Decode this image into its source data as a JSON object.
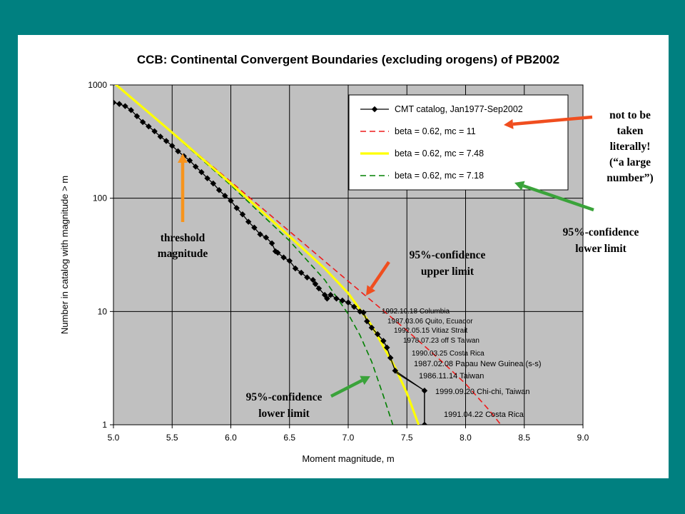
{
  "chart_data": {
    "type": "line",
    "title": "CCB: Continental Convergent Boundaries (excluding orogens) of PB2002",
    "xlabel": "Moment magnitude, m",
    "ylabel": "Number in catalog with magnitude > m",
    "xlim": [
      5.0,
      9.0
    ],
    "ylim": [
      1,
      1000
    ],
    "yscale": "log",
    "grid": true,
    "legend_position": "top-right",
    "x_ticks": [
      "5.0",
      "5.5",
      "6.0",
      "6.5",
      "7.0",
      "7.5",
      "8.0",
      "8.5",
      "9.0"
    ],
    "y_ticks": [
      "1",
      "10",
      "100",
      "1000"
    ],
    "series": [
      {
        "name": "CMT catalog, Jan1977-Sep2002",
        "style": "line-with-markers",
        "color": "#000000",
        "x": [
          5.0,
          5.05,
          5.1,
          5.15,
          5.2,
          5.25,
          5.3,
          5.35,
          5.4,
          5.45,
          5.5,
          5.55,
          5.6,
          5.65,
          5.7,
          5.75,
          5.8,
          5.85,
          5.9,
          5.95,
          6.0,
          6.05,
          6.1,
          6.15,
          6.2,
          6.25,
          6.3,
          6.35,
          6.38,
          6.4,
          6.45,
          6.5,
          6.55,
          6.6,
          6.65,
          6.7,
          6.72,
          6.75,
          6.8,
          6.82,
          6.85,
          6.9,
          6.95,
          7.0,
          7.05,
          7.1,
          7.13,
          7.16,
          7.2,
          7.25,
          7.3,
          7.33,
          7.36,
          7.4,
          7.65,
          7.65
        ],
        "y": [
          700,
          680,
          650,
          600,
          530,
          470,
          430,
          390,
          350,
          320,
          290,
          260,
          235,
          215,
          190,
          170,
          150,
          135,
          118,
          105,
          95,
          82,
          72,
          62,
          55,
          48,
          45,
          40,
          34,
          33,
          30,
          28,
          24,
          22,
          20,
          19,
          17.5,
          16,
          14,
          13,
          14,
          13,
          12.5,
          12,
          11,
          10,
          9.8,
          8.2,
          7.2,
          6.3,
          5.5,
          4.8,
          3.9,
          3.0,
          2,
          1
        ]
      },
      {
        "name": "beta = 0.62, mc = 11",
        "style": "dashed",
        "color": "#ee1c1c",
        "x": [
          5.0,
          5.5,
          6.0,
          6.5,
          7.0,
          7.5,
          7.8,
          8.0,
          8.2,
          8.3
        ],
        "y": [
          1050,
          380,
          140,
          51,
          18.5,
          6.8,
          3.6,
          2.3,
          1.35,
          1.0
        ]
      },
      {
        "name": "beta = 0.62, mc = 7.48",
        "style": "solid",
        "color": "#ffff00",
        "x": [
          5.0,
          5.5,
          6.0,
          6.5,
          6.8,
          7.0,
          7.2,
          7.4,
          7.5,
          7.6
        ],
        "y": [
          1050,
          380,
          135,
          46,
          24,
          14.5,
          7.5,
          3.2,
          1.9,
          1.0
        ]
      },
      {
        "name": "beta = 0.62, mc = 7.18",
        "style": "dashed",
        "color": "#008000",
        "x": [
          5.0,
          5.5,
          6.0,
          6.5,
          6.8,
          7.0,
          7.1,
          7.2,
          7.3,
          7.38
        ],
        "y": [
          1050,
          375,
          130,
          42,
          19,
          9.5,
          6.2,
          3.6,
          1.8,
          1.0
        ]
      }
    ],
    "event_labels": [
      "1992.10.18 Columbia",
      "1987.03.06 Quito, Ecuador",
      "1992.05.15 Vitiaz Strait",
      "1978.07.23 off S Taiwan",
      "1990.03.25 Costa Rica",
      "1987.02.08 Papau New Guinea (s-s)",
      "1986.11.14 Taiwan",
      "1999.09.20 Chi-chi, Taiwan",
      "1991.04.22 Costa Rica"
    ]
  },
  "annotations": {
    "threshold": [
      "threshold",
      "magnitude"
    ],
    "upper_limit": [
      "95%-confidence",
      "upper limit"
    ],
    "lower_limit_chart": [
      "95%-confidence",
      "lower limit"
    ],
    "not_literal": [
      "not to be",
      "taken",
      "literally!",
      "(“a large",
      "number”)"
    ],
    "lower_limit_side": [
      "95%-confidence",
      "lower limit"
    ]
  },
  "colors": {
    "background": "#008080",
    "plot_area": "#c0c0c0",
    "arrow_orange": "#f7941d",
    "arrow_red": "#f04e1f",
    "arrow_green": "#3aa33a"
  }
}
